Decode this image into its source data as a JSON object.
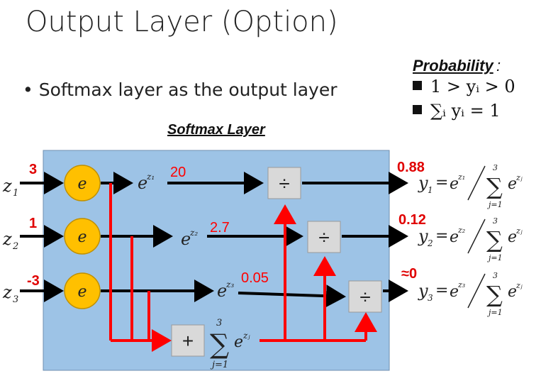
{
  "title": "Output Layer (Option)",
  "bullet": "Softmax layer as the output layer",
  "probability": {
    "label": "Probability",
    "colon": ":",
    "item1": "1 > yᵢ > 0",
    "item2": "∑ᵢ yᵢ = 1"
  },
  "softmax_label": "Softmax Layer",
  "node_label": "e",
  "inputs": [
    {
      "z": "z",
      "sub": "1",
      "value": "3",
      "exp_sub": "z₁",
      "exp_value": "20",
      "y": "y",
      "y_sub": "1",
      "prob": "0.88"
    },
    {
      "z": "z",
      "sub": "2",
      "value": "1",
      "exp_sub": "z₂",
      "exp_value": "2.7",
      "y": "y",
      "y_sub": "2",
      "prob": "0.12"
    },
    {
      "z": "z",
      "sub": "3",
      "value": "-3",
      "exp_sub": "z₃",
      "exp_value": "0.05",
      "y": "y",
      "y_sub": "3",
      "prob": "≈0"
    }
  ],
  "divide_symbol": "÷",
  "plus_symbol": "+",
  "sum_symbol": "∑",
  "sum_upper": "3",
  "sum_lower": "j=1",
  "sum_term": "e",
  "sum_term_sup": "zⱼ",
  "equals": "=",
  "exp_base": "e",
  "colors": {
    "panel": "#9dc3e6",
    "node": "#ffc000",
    "red": "#ff0000",
    "box": "#d9d9d9"
  }
}
